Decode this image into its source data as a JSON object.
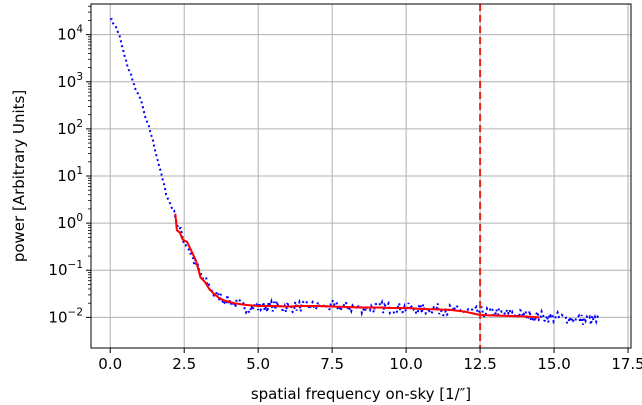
{
  "chart_data": {
    "type": "line",
    "title": "",
    "xlabel": "spatial frequency on-sky [1/″]",
    "ylabel": "power [Arbitrary Units]",
    "xlim": [
      -0.65,
      17.6
    ],
    "ylim_log10": [
      -2.65,
      4.65
    ],
    "yscale": "log",
    "grid": true,
    "xticks": [
      0.0,
      2.5,
      5.0,
      7.5,
      10.0,
      12.5,
      15.0,
      17.5
    ],
    "xtick_labels": [
      "0.0",
      "2.5",
      "5.0",
      "7.5",
      "10.0",
      "12.5",
      "15.0",
      "17.5"
    ],
    "ytick_exponents": [
      -2,
      -1,
      0,
      1,
      2,
      3,
      4
    ],
    "ytick_base": "10",
    "colors": {
      "raw": "#0000ff",
      "smoothed": "#ff0000",
      "cutoff": "#e8231b",
      "grid": "#b0b0b0"
    },
    "series": [
      {
        "style": "dotted",
        "color": "#0000ff",
        "description_points_x_log10y": [
          [
            0.0,
            4.35
          ],
          [
            0.1,
            4.25
          ],
          [
            0.2,
            4.15
          ],
          [
            0.3,
            4.0
          ],
          [
            0.4,
            3.75
          ],
          [
            0.5,
            3.5
          ],
          [
            0.6,
            3.3
          ],
          [
            0.7,
            3.15
          ],
          [
            0.8,
            2.95
          ],
          [
            0.9,
            2.75
          ],
          [
            1.0,
            2.7
          ],
          [
            1.1,
            2.45
          ],
          [
            1.2,
            2.2
          ],
          [
            1.3,
            2.05
          ],
          [
            1.4,
            1.85
          ],
          [
            1.5,
            1.6
          ],
          [
            1.6,
            1.35
          ],
          [
            1.7,
            1.1
          ],
          [
            1.8,
            0.85
          ],
          [
            1.9,
            0.6
          ],
          [
            2.0,
            0.45
          ],
          [
            2.1,
            0.3
          ],
          [
            2.2,
            0.2
          ],
          [
            2.3,
            -0.1
          ],
          [
            2.5,
            -0.35
          ],
          [
            2.7,
            -0.6
          ],
          [
            2.9,
            -0.9
          ],
          [
            3.1,
            -1.15
          ],
          [
            3.3,
            -1.3
          ],
          [
            3.5,
            -1.5
          ],
          [
            3.8,
            -1.6
          ],
          [
            4.0,
            -1.65
          ],
          [
            4.3,
            -1.72
          ],
          [
            4.6,
            -1.78
          ],
          [
            5.0,
            -1.78
          ],
          [
            5.5,
            -1.76
          ],
          [
            6.0,
            -1.78
          ],
          [
            6.5,
            -1.76
          ],
          [
            7.0,
            -1.77
          ],
          [
            7.5,
            -1.77
          ],
          [
            8.0,
            -1.78
          ],
          [
            8.5,
            -1.8
          ],
          [
            9.0,
            -1.79
          ],
          [
            9.5,
            -1.8
          ],
          [
            10.0,
            -1.81
          ],
          [
            10.5,
            -1.83
          ],
          [
            11.0,
            -1.82
          ],
          [
            11.5,
            -1.85
          ],
          [
            12.0,
            -1.87
          ],
          [
            12.5,
            -1.9
          ],
          [
            13.0,
            -1.9
          ],
          [
            13.5,
            -1.93
          ],
          [
            14.0,
            -1.95
          ],
          [
            14.5,
            -1.98
          ],
          [
            15.0,
            -2.0
          ],
          [
            15.5,
            -2.02
          ],
          [
            16.0,
            -2.05
          ],
          [
            16.6,
            -2.08
          ]
        ],
        "noise_amplitude_log10": 0.12
      },
      {
        "style": "solid",
        "color": "#ff0000",
        "points_x_log10y": [
          [
            2.2,
            0.2
          ],
          [
            2.25,
            -0.15
          ],
          [
            2.35,
            -0.2
          ],
          [
            2.45,
            -0.35
          ],
          [
            2.6,
            -0.4
          ],
          [
            2.75,
            -0.6
          ],
          [
            2.9,
            -0.8
          ],
          [
            3.05,
            -1.15
          ],
          [
            3.2,
            -1.25
          ],
          [
            3.35,
            -1.4
          ],
          [
            3.5,
            -1.5
          ],
          [
            3.7,
            -1.6
          ],
          [
            3.9,
            -1.65
          ],
          [
            4.2,
            -1.7
          ],
          [
            4.5,
            -1.73
          ],
          [
            5.0,
            -1.76
          ],
          [
            5.5,
            -1.76
          ],
          [
            6.0,
            -1.77
          ],
          [
            6.5,
            -1.76
          ],
          [
            7.0,
            -1.76
          ],
          [
            7.5,
            -1.77
          ],
          [
            8.0,
            -1.78
          ],
          [
            8.5,
            -1.79
          ],
          [
            9.0,
            -1.79
          ],
          [
            9.5,
            -1.8
          ],
          [
            10.0,
            -1.8
          ],
          [
            10.5,
            -1.82
          ],
          [
            11.0,
            -1.83
          ],
          [
            11.5,
            -1.84
          ],
          [
            12.0,
            -1.88
          ],
          [
            12.5,
            -1.95
          ],
          [
            13.0,
            -1.96
          ],
          [
            13.5,
            -1.97
          ],
          [
            14.0,
            -1.98
          ],
          [
            14.5,
            -2.0
          ]
        ]
      }
    ],
    "vertical_line": {
      "x": 12.5,
      "style": "dashed",
      "color": "#e8231b"
    }
  }
}
